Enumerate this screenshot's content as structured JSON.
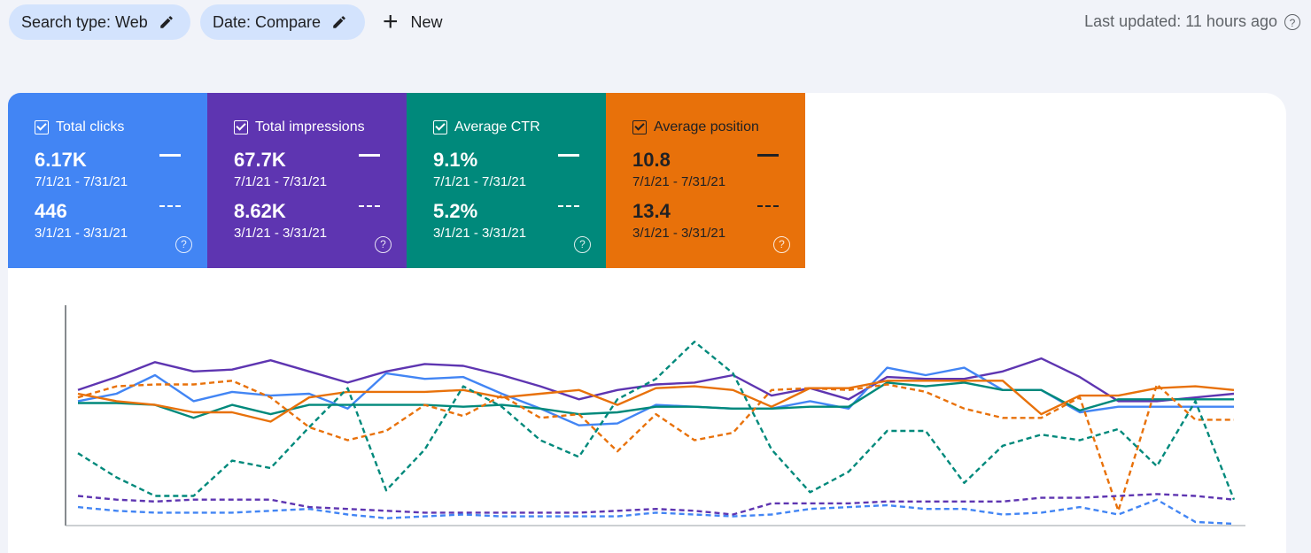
{
  "filters": {
    "search_type": "Search type: Web",
    "date": "Date: Compare",
    "new_label": "New"
  },
  "last_updated": "Last updated: 11 hours ago",
  "metrics": [
    {
      "label": "Total clicks",
      "current_value": "6.17K",
      "current_range": "7/1/21 - 7/31/21",
      "previous_value": "446",
      "previous_range": "3/1/21 - 3/31/21",
      "color": "#4285f4",
      "checked": true
    },
    {
      "label": "Total impressions",
      "current_value": "67.7K",
      "current_range": "7/1/21 - 7/31/21",
      "previous_value": "8.62K",
      "previous_range": "3/1/21 - 3/31/21",
      "color": "#5e35b1",
      "checked": true
    },
    {
      "label": "Average CTR",
      "current_value": "9.1%",
      "current_range": "7/1/21 - 7/31/21",
      "previous_value": "5.2%",
      "previous_range": "3/1/21 - 3/31/21",
      "color": "#00897b",
      "checked": true
    },
    {
      "label": "Average position",
      "current_value": "10.8",
      "current_range": "7/1/21 - 7/31/21",
      "previous_value": "13.4",
      "previous_range": "3/1/21 - 3/31/21",
      "color": "#e8710a",
      "checked": true
    }
  ],
  "chart_data": {
    "type": "line",
    "x_count": 31,
    "yaxis_labels_visible": false,
    "normalized_scale_note": "each metric plotted on its own hidden axis; values below are relative levels 0-100",
    "series": [
      {
        "color": "#5e35b1",
        "style": "solid",
        "values": [
          72,
          79,
          87,
          82,
          83,
          88,
          82,
          76,
          82,
          86,
          85,
          80,
          74,
          67,
          72,
          75,
          76,
          80,
          69,
          73,
          67,
          79,
          78,
          78,
          82,
          89,
          79,
          66,
          66,
          68,
          70
        ]
      },
      {
        "color": "#4285f4",
        "style": "solid",
        "values": [
          66,
          70,
          80,
          66,
          71,
          69,
          70,
          62,
          81,
          78,
          79,
          70,
          62,
          53,
          54,
          64,
          63,
          62,
          62,
          66,
          62,
          84,
          80,
          84,
          72,
          72,
          60,
          63,
          63,
          63,
          63
        ]
      },
      {
        "color": "#00897b",
        "style": "solid",
        "values": [
          65,
          65,
          64,
          57,
          64,
          59,
          64,
          64,
          64,
          64,
          63,
          64,
          62,
          59,
          60,
          63,
          63,
          62,
          62,
          63,
          63,
          76,
          74,
          76,
          72,
          72,
          61,
          67,
          67,
          67,
          67
        ]
      },
      {
        "color": "#e8710a",
        "style": "solid",
        "values": [
          70,
          66,
          64,
          60,
          60,
          55,
          68,
          71,
          71,
          71,
          72,
          68,
          70,
          72,
          64,
          73,
          74,
          72,
          63,
          73,
          73,
          77,
          77,
          77,
          77,
          59,
          69,
          69,
          73,
          74,
          72
        ]
      },
      {
        "color": "#e8710a",
        "style": "dashed",
        "values": [
          68,
          74,
          75,
          75,
          77,
          68,
          52,
          45,
          50,
          64,
          58,
          69,
          57,
          59,
          39,
          59,
          45,
          49,
          72,
          73,
          72,
          75,
          71,
          62,
          57,
          57,
          68,
          7,
          75,
          56,
          56
        ]
      },
      {
        "color": "#00897b",
        "style": "dashed",
        "values": [
          38,
          25,
          15,
          15,
          34,
          30,
          52,
          73,
          18,
          40,
          74,
          63,
          45,
          36,
          67,
          78,
          98,
          81,
          40,
          17,
          28,
          50,
          50,
          22,
          42,
          48,
          45,
          51,
          31,
          66,
          13
        ]
      },
      {
        "color": "#5e35b1",
        "style": "dashed",
        "values": [
          15,
          13,
          12,
          13,
          13,
          13,
          9,
          8,
          7,
          6,
          6,
          6,
          6,
          6,
          7,
          8,
          7,
          5,
          11,
          11,
          11,
          12,
          12,
          12,
          12,
          14,
          14,
          15,
          16,
          15,
          13
        ]
      },
      {
        "color": "#4285f4",
        "style": "dashed",
        "values": [
          9,
          7,
          6,
          6,
          6,
          7,
          8,
          5,
          3,
          4,
          5,
          4,
          4,
          4,
          4,
          6,
          5,
          4,
          5,
          8,
          9,
          10,
          8,
          8,
          5,
          6,
          9,
          5,
          13,
          1,
          0
        ]
      }
    ]
  }
}
